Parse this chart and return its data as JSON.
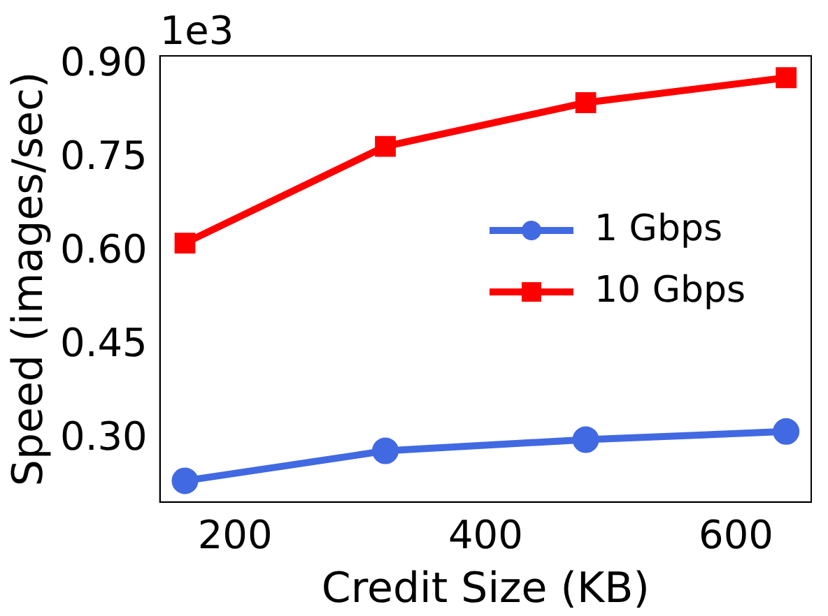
{
  "chart_data": {
    "type": "line",
    "xlabel": "Credit Size (KB)",
    "ylabel": "Speed (images/sec)",
    "annotations": [
      "1e3"
    ],
    "x": [
      160,
      320,
      480,
      640
    ],
    "series": [
      {
        "name": "1 Gbps",
        "color": "#4169e1",
        "marker": "circle",
        "values": [
          0.234,
          0.282,
          0.3,
          0.313
        ]
      },
      {
        "name": "10 Gbps",
        "color": "#ff0000",
        "marker": "square",
        "values": [
          0.615,
          0.77,
          0.84,
          0.88
        ]
      }
    ],
    "xlim": [
      140,
      660
    ],
    "xticks": [
      200,
      400,
      600
    ],
    "ylim": [
      0.2,
      0.915
    ],
    "yticks": [
      {
        "value": 0.3,
        "label": "0.30"
      },
      {
        "value": 0.45,
        "label": "0.45"
      },
      {
        "value": 0.6,
        "label": "0.60"
      },
      {
        "value": 0.75,
        "label": "0.75"
      },
      {
        "value": 0.9,
        "label": "0.90"
      }
    ],
    "grid": false,
    "legend": "right",
    "line_style": "solid"
  }
}
